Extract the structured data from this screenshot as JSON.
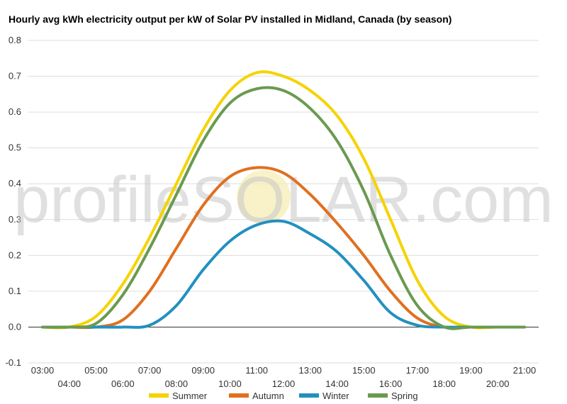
{
  "chart_data": {
    "type": "line",
    "title": "Hourly avg kWh electricity output per kW of Solar PV installed in Midland, Canada (by season)",
    "watermark": "profileSOLAR.com",
    "x": [
      "03:00",
      "04:00",
      "05:00",
      "06:00",
      "07:00",
      "08:00",
      "09:00",
      "10:00",
      "11:00",
      "12:00",
      "13:00",
      "14:00",
      "15:00",
      "16:00",
      "17:00",
      "18:00",
      "19:00",
      "20:00",
      "21:00"
    ],
    "ylim": [
      -0.1,
      0.8
    ],
    "yticks": [
      "-0.1",
      "0.0",
      "0.1",
      "0.2",
      "0.3",
      "0.4",
      "0.5",
      "0.6",
      "0.7",
      "0.8"
    ],
    "grid": true,
    "legend_position": "bottom",
    "series": [
      {
        "name": "Summer",
        "color": "#f5d300",
        "values": [
          0.0,
          0.0,
          0.03,
          0.12,
          0.25,
          0.4,
          0.55,
          0.66,
          0.71,
          0.7,
          0.66,
          0.59,
          0.47,
          0.3,
          0.13,
          0.03,
          0.0,
          0.0,
          0.0
        ]
      },
      {
        "name": "Autumn",
        "color": "#e07020",
        "values": [
          0.0,
          0.0,
          0.0,
          0.02,
          0.1,
          0.22,
          0.34,
          0.42,
          0.445,
          0.43,
          0.37,
          0.29,
          0.2,
          0.1,
          0.025,
          0.0,
          0.0,
          0.0,
          0.0
        ]
      },
      {
        "name": "Winter",
        "color": "#2290c0",
        "values": [
          0.0,
          0.0,
          0.0,
          0.0,
          0.005,
          0.06,
          0.16,
          0.24,
          0.285,
          0.295,
          0.26,
          0.21,
          0.13,
          0.04,
          0.005,
          0.0,
          0.0,
          0.0,
          0.0
        ]
      },
      {
        "name": "Spring",
        "color": "#6a9a50",
        "values": [
          0.0,
          0.0,
          0.01,
          0.09,
          0.22,
          0.37,
          0.52,
          0.625,
          0.665,
          0.66,
          0.61,
          0.52,
          0.38,
          0.2,
          0.06,
          0.0,
          0.0,
          0.0,
          0.0
        ]
      }
    ]
  }
}
